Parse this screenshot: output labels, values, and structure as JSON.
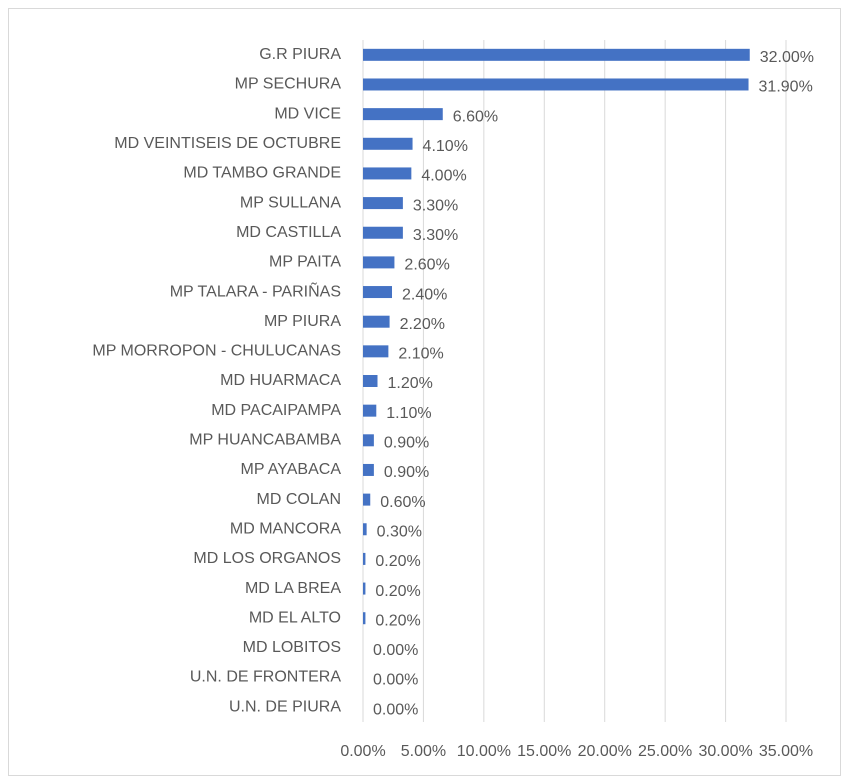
{
  "chart_data": {
    "type": "bar",
    "orientation": "horizontal",
    "categories": [
      "G.R PIURA",
      "MP SECHURA",
      "MD VICE",
      "MD VEINTISEIS DE OCTUBRE",
      "MD TAMBO GRANDE",
      "MP SULLANA",
      "MD CASTILLA",
      "MP PAITA",
      "MP TALARA - PARIÑAS",
      "MP PIURA",
      "MP MORROPON - CHULUCANAS",
      "MD HUARMACA",
      "MD PACAIPAMPA",
      "MP HUANCABAMBA",
      "MP AYABACA",
      "MD COLAN",
      "MD MANCORA",
      "MD LOS ORGANOS",
      "MD LA BREA",
      "MD EL ALTO",
      "MD LOBITOS",
      "U.N. DE FRONTERA",
      "U.N. DE PIURA"
    ],
    "values": [
      32,
      31.9,
      6.6,
      4.1,
      4.0,
      3.3,
      3.3,
      2.6,
      2.4,
      2.2,
      2.1,
      1.2,
      1.1,
      0.9,
      0.9,
      0.6,
      0.3,
      0.2,
      0.2,
      0.2,
      0,
      0,
      0
    ],
    "value_labels": [
      "32.00%",
      "31.90%",
      "6.60%",
      "4.10%",
      "4.00%",
      "3.30%",
      "3.30%",
      "2.60%",
      "2.40%",
      "2.20%",
      "2.10%",
      "1.20%",
      "1.10%",
      "0.90%",
      "0.90%",
      "0.60%",
      "0.30%",
      "0.20%",
      "0.20%",
      "0.20%",
      "0.00%",
      "0.00%",
      "0.00%"
    ],
    "color": "#4472c4",
    "xlim": [
      0,
      35
    ],
    "xticks": [
      {
        "value": 0,
        "label": "0.00%"
      },
      {
        "value": 5,
        "label": "5.00%"
      },
      {
        "value": 10,
        "label": "10.00%"
      },
      {
        "value": 15,
        "label": "15.00%"
      },
      {
        "value": 20,
        "label": "20.00%"
      },
      {
        "value": 25,
        "label": "25.00%"
      },
      {
        "value": 30,
        "label": "30.00%"
      },
      {
        "value": 35,
        "label": "35.00%"
      }
    ],
    "grid": true
  }
}
